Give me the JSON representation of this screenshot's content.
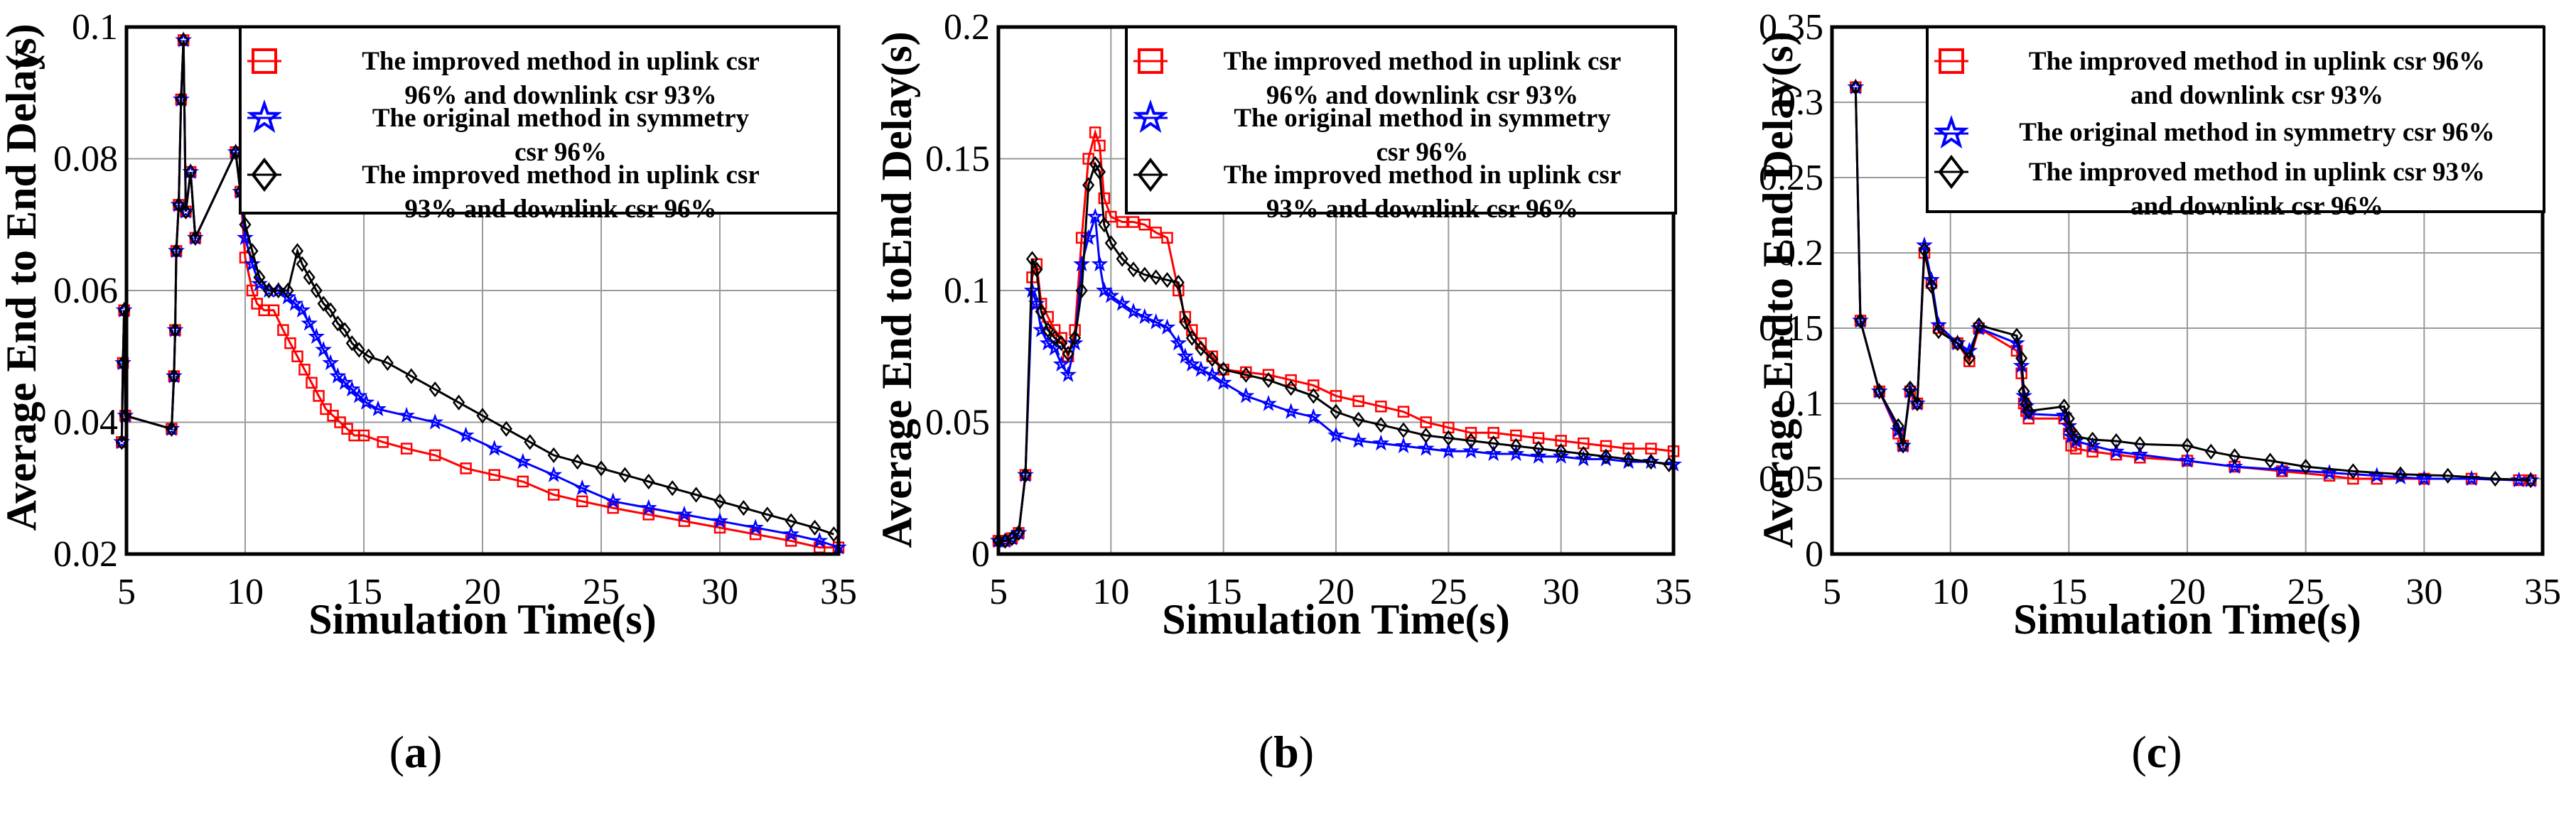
{
  "series_style": {
    "improved_uplink_96": {
      "color": "#ff0000",
      "marker": "square"
    },
    "original_symmetry": {
      "color": "#0000ff",
      "marker": "star"
    },
    "improved_uplink_93": {
      "color": "#000000",
      "marker": "diamond"
    }
  },
  "chart_data": [
    {
      "type": "line",
      "panel_label": "a",
      "xlabel": "Simulation Time(s)",
      "ylabel": "Average End to End Delay",
      "ylabel_unit": "(s)",
      "xlim": [
        5,
        35
      ],
      "ylim": [
        0.02,
        0.1
      ],
      "xticks": [
        "5",
        "10",
        "15",
        "20",
        "25",
        "30",
        "35"
      ],
      "yticks": [
        "0.02",
        "0.04",
        "0.06",
        "0.08",
        "0.1"
      ],
      "legend_location": "top-right",
      "grid": true,
      "series": [
        {
          "key": "improved_uplink_96",
          "name_lines": [
            "The improved method in uplink csr",
            "96% and downlink csr 93%"
          ],
          "x": [
            4.8,
            4.85,
            4.9,
            4.95,
            6.9,
            7.0,
            7.05,
            7.1,
            7.2,
            7.3,
            7.4,
            7.5,
            7.7,
            7.9,
            9.6,
            9.8,
            10.0,
            10.3,
            10.5,
            10.8,
            11.2,
            11.6,
            11.9,
            12.2,
            12.5,
            12.8,
            13.1,
            13.4,
            13.7,
            14.0,
            14.3,
            14.6,
            15.0,
            15.8,
            16.8,
            18.0,
            19.3,
            20.5,
            21.7,
            23.0,
            24.2,
            25.5,
            27.0,
            28.5,
            30.0,
            31.5,
            33.0,
            34.2,
            35.0
          ],
          "y": [
            0.037,
            0.049,
            0.057,
            0.041,
            0.039,
            0.047,
            0.054,
            0.066,
            0.073,
            0.089,
            0.098,
            0.072,
            0.078,
            0.068,
            0.081,
            0.075,
            0.065,
            0.06,
            0.058,
            0.057,
            0.057,
            0.054,
            0.052,
            0.05,
            0.048,
            0.046,
            0.044,
            0.042,
            0.041,
            0.04,
            0.039,
            0.038,
            0.038,
            0.037,
            0.036,
            0.035,
            0.033,
            0.032,
            0.031,
            0.029,
            0.028,
            0.027,
            0.026,
            0.025,
            0.024,
            0.023,
            0.022,
            0.021,
            0.021
          ]
        },
        {
          "key": "original_symmetry",
          "name_lines": [
            "The original method in symmetry",
            "csr 96%"
          ],
          "x": [
            4.8,
            4.85,
            4.9,
            4.95,
            6.9,
            7.0,
            7.05,
            7.1,
            7.2,
            7.3,
            7.4,
            7.5,
            7.7,
            7.9,
            9.6,
            9.8,
            10.0,
            10.3,
            10.6,
            11.0,
            11.4,
            11.8,
            12.1,
            12.4,
            12.7,
            13.0,
            13.3,
            13.6,
            13.9,
            14.2,
            14.5,
            14.8,
            15.1,
            15.6,
            16.8,
            18.0,
            19.3,
            20.5,
            21.7,
            23.0,
            24.2,
            25.5,
            27.0,
            28.5,
            30.0,
            31.5,
            33.0,
            34.2,
            35.0
          ],
          "y": [
            0.037,
            0.049,
            0.057,
            0.041,
            0.039,
            0.047,
            0.054,
            0.066,
            0.073,
            0.089,
            0.098,
            0.072,
            0.078,
            0.068,
            0.081,
            0.075,
            0.068,
            0.064,
            0.061,
            0.06,
            0.06,
            0.059,
            0.058,
            0.057,
            0.055,
            0.053,
            0.051,
            0.049,
            0.047,
            0.046,
            0.045,
            0.044,
            0.043,
            0.042,
            0.041,
            0.04,
            0.038,
            0.036,
            0.034,
            0.032,
            0.03,
            0.028,
            0.027,
            0.026,
            0.025,
            0.024,
            0.023,
            0.022,
            0.021
          ]
        },
        {
          "key": "improved_uplink_93",
          "name_lines": [
            "The improved method in uplink csr",
            "93% and downlink csr 96%"
          ],
          "x": [
            4.8,
            4.85,
            4.9,
            4.95,
            6.9,
            7.0,
            7.05,
            7.1,
            7.2,
            7.3,
            7.4,
            7.5,
            7.7,
            7.9,
            9.6,
            9.8,
            10.0,
            10.3,
            10.6,
            11.0,
            11.4,
            11.8,
            12.2,
            12.4,
            12.7,
            13.0,
            13.3,
            13.6,
            13.9,
            14.2,
            14.5,
            14.8,
            15.2,
            16.0,
            17.0,
            18.0,
            19.0,
            20.0,
            21.0,
            22.0,
            23.0,
            24.0,
            25.0,
            26.0,
            27.0,
            28.0,
            29.0,
            30.0,
            31.0,
            32.0,
            33.0,
            34.0,
            34.8
          ],
          "y": [
            0.037,
            0.049,
            0.057,
            0.041,
            0.039,
            0.047,
            0.054,
            0.066,
            0.073,
            0.089,
            0.098,
            0.072,
            0.078,
            0.068,
            0.081,
            0.075,
            0.07,
            0.066,
            0.062,
            0.06,
            0.06,
            0.06,
            0.066,
            0.064,
            0.062,
            0.06,
            0.058,
            0.057,
            0.055,
            0.054,
            0.052,
            0.051,
            0.05,
            0.049,
            0.047,
            0.045,
            0.043,
            0.041,
            0.039,
            0.037,
            0.035,
            0.034,
            0.033,
            0.032,
            0.031,
            0.03,
            0.029,
            0.028,
            0.027,
            0.026,
            0.025,
            0.024,
            0.023
          ]
        }
      ]
    },
    {
      "type": "line",
      "panel_label": "b",
      "xlabel": "Simulation Time(s)",
      "ylabel": "Average End toEnd Delay(s)",
      "ylabel_unit": "",
      "xlim": [
        5,
        35
      ],
      "ylim": [
        0,
        0.2
      ],
      "xticks": [
        "5",
        "10",
        "15",
        "20",
        "25",
        "30",
        "35"
      ],
      "yticks": [
        "0",
        "0.05",
        "0.1",
        "0.15",
        "0.2"
      ],
      "legend_location": "top-right",
      "grid": true,
      "series": [
        {
          "key": "improved_uplink_96",
          "name_lines": [
            "The improved method in uplink csr",
            "96% and downlink csr 93%"
          ],
          "x": [
            5.0,
            5.3,
            5.6,
            5.9,
            6.2,
            6.5,
            6.7,
            6.9,
            7.2,
            7.5,
            7.8,
            8.1,
            8.4,
            8.7,
            9.0,
            9.3,
            9.5,
            9.7,
            10.0,
            10.5,
            11.0,
            11.5,
            12.0,
            12.5,
            13.0,
            13.3,
            13.6,
            14.0,
            14.5,
            15.0,
            16.0,
            17.0,
            18.0,
            19.0,
            20.0,
            21.0,
            22.0,
            23.0,
            24.0,
            25.0,
            26.0,
            27.0,
            28.0,
            29.0,
            30.0,
            31.0,
            32.0,
            33.0,
            34.0,
            35.0
          ],
          "y": [
            0.005,
            0.005,
            0.006,
            0.008,
            0.03,
            0.105,
            0.11,
            0.095,
            0.09,
            0.085,
            0.082,
            0.075,
            0.085,
            0.12,
            0.15,
            0.16,
            0.155,
            0.135,
            0.128,
            0.126,
            0.126,
            0.125,
            0.122,
            0.12,
            0.1,
            0.09,
            0.085,
            0.08,
            0.075,
            0.07,
            0.069,
            0.068,
            0.066,
            0.064,
            0.06,
            0.058,
            0.056,
            0.054,
            0.05,
            0.048,
            0.046,
            0.046,
            0.045,
            0.044,
            0.043,
            0.042,
            0.041,
            0.04,
            0.04,
            0.039
          ]
        },
        {
          "key": "original_symmetry",
          "name_lines": [
            "The original method in symmetry",
            "csr 96%"
          ],
          "x": [
            5.0,
            5.3,
            5.6,
            5.9,
            6.2,
            6.5,
            6.7,
            6.9,
            7.2,
            7.5,
            7.8,
            8.1,
            8.4,
            8.7,
            9.0,
            9.3,
            9.5,
            9.7,
            10.0,
            10.5,
            11.0,
            11.5,
            12.0,
            12.5,
            13.0,
            13.3,
            13.6,
            14.0,
            14.5,
            15.0,
            16.0,
            17.0,
            18.0,
            19.0,
            20.0,
            21.0,
            22.0,
            23.0,
            24.0,
            25.0,
            26.0,
            27.0,
            28.0,
            29.0,
            30.0,
            31.0,
            32.0,
            33.0,
            34.0,
            35.0
          ],
          "y": [
            0.005,
            0.005,
            0.006,
            0.008,
            0.03,
            0.1,
            0.095,
            0.085,
            0.08,
            0.078,
            0.072,
            0.068,
            0.08,
            0.11,
            0.12,
            0.128,
            0.11,
            0.1,
            0.098,
            0.095,
            0.092,
            0.09,
            0.088,
            0.086,
            0.08,
            0.075,
            0.072,
            0.07,
            0.068,
            0.065,
            0.06,
            0.057,
            0.054,
            0.052,
            0.045,
            0.043,
            0.042,
            0.041,
            0.04,
            0.039,
            0.039,
            0.038,
            0.038,
            0.037,
            0.037,
            0.036,
            0.036,
            0.035,
            0.035,
            0.034
          ]
        },
        {
          "key": "improved_uplink_93",
          "name_lines": [
            "The improved method in uplink csr",
            "93% and downlink csr 96%"
          ],
          "x": [
            5.0,
            5.3,
            5.6,
            5.9,
            6.2,
            6.5,
            6.7,
            6.9,
            7.2,
            7.5,
            7.8,
            8.1,
            8.4,
            8.7,
            9.0,
            9.3,
            9.5,
            9.7,
            10.0,
            10.5,
            11.0,
            11.5,
            12.0,
            12.5,
            13.0,
            13.3,
            13.6,
            14.0,
            14.5,
            15.0,
            16.0,
            17.0,
            18.0,
            19.0,
            20.0,
            21.0,
            22.0,
            23.0,
            24.0,
            25.0,
            26.0,
            27.0,
            28.0,
            29.0,
            30.0,
            31.0,
            32.0,
            33.0,
            34.0,
            34.8
          ],
          "y": [
            0.005,
            0.005,
            0.006,
            0.008,
            0.03,
            0.112,
            0.108,
            0.092,
            0.085,
            0.082,
            0.08,
            0.076,
            0.082,
            0.1,
            0.14,
            0.148,
            0.145,
            0.125,
            0.118,
            0.112,
            0.108,
            0.106,
            0.105,
            0.104,
            0.103,
            0.088,
            0.082,
            0.078,
            0.074,
            0.07,
            0.068,
            0.066,
            0.063,
            0.06,
            0.054,
            0.051,
            0.049,
            0.047,
            0.045,
            0.044,
            0.043,
            0.042,
            0.041,
            0.04,
            0.039,
            0.038,
            0.037,
            0.036,
            0.035,
            0.034
          ]
        }
      ]
    },
    {
      "type": "line",
      "panel_label": "c",
      "xlabel": "Simulation Time(s)",
      "ylabel": "Average Endto End Delay(s)",
      "ylabel_unit": "",
      "xlim": [
        5,
        35
      ],
      "ylim": [
        0,
        0.35
      ],
      "xticks": [
        "5",
        "10",
        "15",
        "20",
        "25",
        "30",
        "35"
      ],
      "yticks": [
        "0",
        "0.05",
        "0.1",
        "0.15",
        "0.2",
        "0.25",
        "0.3",
        "0.35"
      ],
      "legend_location": "top-right",
      "grid": true,
      "series": [
        {
          "key": "improved_uplink_96",
          "name_lines": [
            "The improved method in uplink csr 96%",
            "and downlink csr 93%"
          ],
          "x": [
            6.0,
            6.2,
            7.0,
            7.8,
            8.0,
            8.3,
            8.6,
            8.9,
            9.2,
            9.5,
            10.3,
            10.8,
            11.2,
            12.8,
            13.0,
            13.1,
            13.2,
            13.3,
            14.8,
            15.0,
            15.1,
            15.3,
            16.0,
            17.0,
            18.0,
            20.0,
            22.0,
            24.0,
            26.0,
            27.0,
            28.0,
            30.0,
            32.0,
            34.0,
            34.5
          ],
          "y": [
            0.31,
            0.155,
            0.108,
            0.08,
            0.072,
            0.108,
            0.1,
            0.2,
            0.18,
            0.15,
            0.14,
            0.128,
            0.15,
            0.135,
            0.12,
            0.1,
            0.095,
            0.09,
            0.09,
            0.08,
            0.072,
            0.07,
            0.068,
            0.066,
            0.064,
            0.062,
            0.058,
            0.055,
            0.052,
            0.05,
            0.05,
            0.05,
            0.05,
            0.049,
            0.049
          ]
        },
        {
          "key": "original_symmetry",
          "name_lines": [
            "The original method in symmetry csr 96%"
          ],
          "x": [
            6.0,
            6.2,
            7.0,
            7.8,
            8.0,
            8.3,
            8.6,
            8.9,
            9.2,
            9.5,
            10.3,
            10.8,
            11.2,
            12.8,
            13.0,
            13.1,
            13.2,
            13.3,
            14.8,
            15.0,
            15.1,
            15.3,
            16.0,
            17.0,
            18.0,
            20.0,
            22.0,
            24.0,
            26.0,
            28.0,
            29.0,
            30.0,
            32.0,
            34.0,
            34.5
          ],
          "y": [
            0.31,
            0.155,
            0.108,
            0.082,
            0.072,
            0.108,
            0.1,
            0.205,
            0.182,
            0.152,
            0.14,
            0.135,
            0.15,
            0.14,
            0.125,
            0.105,
            0.098,
            0.093,
            0.092,
            0.085,
            0.078,
            0.075,
            0.072,
            0.068,
            0.066,
            0.062,
            0.058,
            0.056,
            0.054,
            0.052,
            0.051,
            0.05,
            0.05,
            0.049,
            0.049
          ]
        },
        {
          "key": "improved_uplink_93",
          "name_lines": [
            "The improved method in uplink csr 93%",
            "and downlink csr 96%"
          ],
          "x": [
            6.0,
            6.2,
            7.0,
            7.8,
            8.0,
            8.3,
            8.6,
            8.9,
            9.2,
            9.5,
            10.3,
            10.8,
            11.2,
            12.8,
            13.0,
            13.1,
            13.2,
            13.3,
            14.8,
            15.0,
            15.1,
            15.3,
            16.0,
            17.0,
            18.0,
            20.0,
            21.0,
            22.0,
            23.5,
            25.0,
            27.0,
            29.0,
            31.0,
            33.0,
            34.5
          ],
          "y": [
            0.31,
            0.155,
            0.108,
            0.085,
            0.072,
            0.11,
            0.1,
            0.202,
            0.178,
            0.148,
            0.14,
            0.13,
            0.152,
            0.145,
            0.13,
            0.108,
            0.1,
            0.095,
            0.098,
            0.09,
            0.082,
            0.078,
            0.076,
            0.075,
            0.073,
            0.072,
            0.068,
            0.065,
            0.062,
            0.058,
            0.055,
            0.053,
            0.052,
            0.05,
            0.049
          ]
        }
      ]
    }
  ]
}
